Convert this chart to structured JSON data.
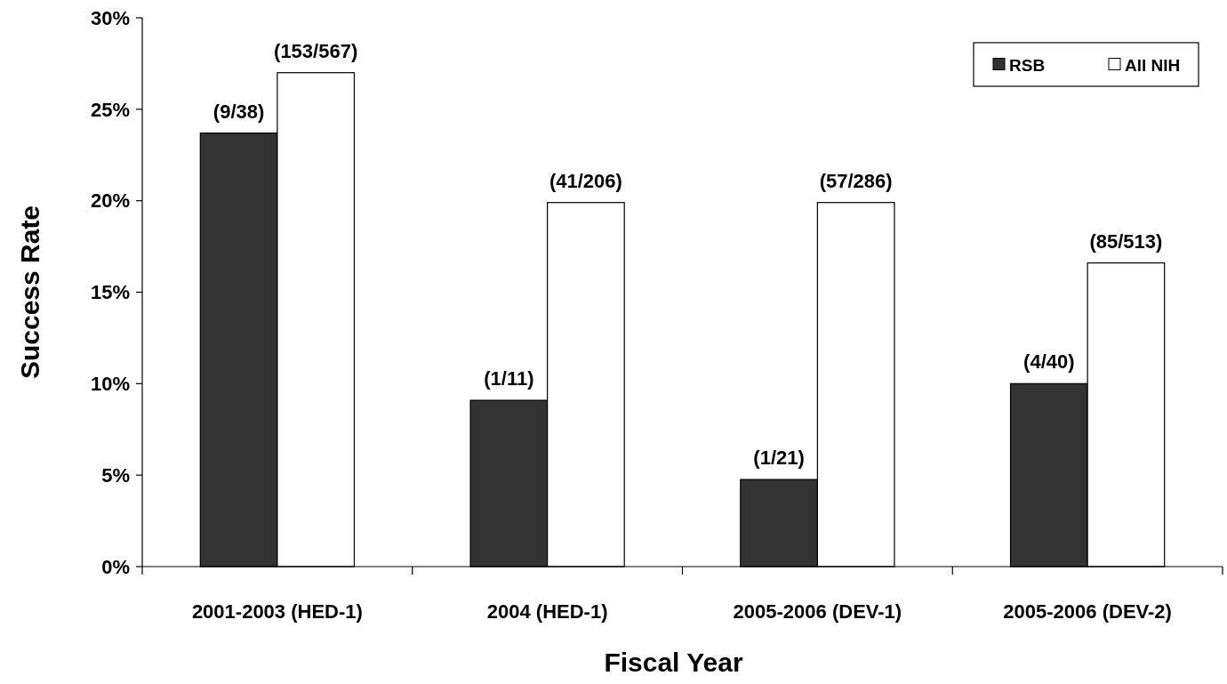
{
  "chart_data": {
    "type": "bar",
    "xlabel": "Fiscal Year",
    "ylabel": "Success Rate",
    "categories": [
      "2001-2003 (HED-1)",
      "2004 (HED-1)",
      "2005-2006 (DEV-1)",
      "2005-2006 (DEV-2)"
    ],
    "series": [
      {
        "name": "RSB",
        "color": "#333333",
        "values": [
          23.7,
          9.09,
          4.76,
          10.0
        ],
        "value_labels": [
          "(9/38)",
          "(1/11)",
          "(1/21)",
          "(4/40)"
        ]
      },
      {
        "name": "All NIH",
        "color": "#ffffff",
        "values": [
          27.0,
          19.9,
          19.9,
          16.6
        ],
        "value_labels": [
          "(153/567)",
          "(41/206)",
          "(57/286)",
          "(85/513)"
        ]
      }
    ],
    "ylim": [
      0,
      30
    ],
    "yticks": [
      {
        "value": 0,
        "label": "0%"
      },
      {
        "value": 5,
        "label": "5%"
      },
      {
        "value": 10,
        "label": "10%"
      },
      {
        "value": 15,
        "label": "15%"
      },
      {
        "value": 20,
        "label": "20%"
      },
      {
        "value": 25,
        "label": "25%"
      },
      {
        "value": 30,
        "label": "30%"
      }
    ],
    "legend": "top right"
  }
}
